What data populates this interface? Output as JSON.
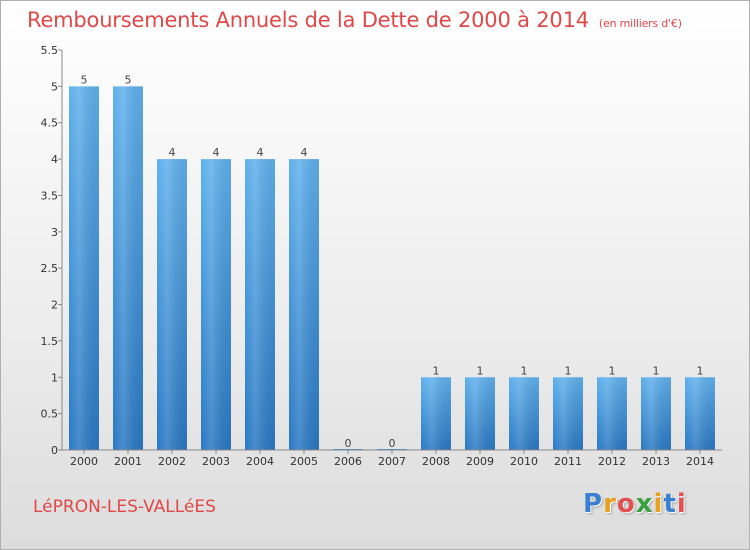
{
  "header": {
    "title": "Remboursements Annuels de la Dette de 2000 à 2014",
    "unit": "(en milliers d'€)"
  },
  "footer": {
    "commune": "LéPRON-LES-VALLéES",
    "logo_letters": [
      "P",
      "r",
      "o",
      "x",
      "i",
      "t",
      "i"
    ],
    "logo_colors": [
      "#3a7fd0",
      "#e8a020",
      "#e05050",
      "#3aa040",
      "#e8a020",
      "#3a7fd0",
      "#e05050"
    ]
  },
  "chart_data": {
    "type": "bar",
    "title": "Remboursements Annuels de la Dette de 2000 à 2014",
    "categories": [
      "2000",
      "2001",
      "2002",
      "2003",
      "2004",
      "2005",
      "2006",
      "2007",
      "2008",
      "2009",
      "2010",
      "2011",
      "2012",
      "2013",
      "2014"
    ],
    "values": [
      5,
      5,
      4,
      4,
      4,
      4,
      0,
      0,
      1,
      1,
      1,
      1,
      1,
      1,
      1
    ],
    "data_labels": [
      "5",
      "5",
      "4",
      "4",
      "4",
      "4",
      "0",
      "0",
      "1",
      "1",
      "1",
      "1",
      "1",
      "1",
      "1"
    ],
    "ylim": [
      0,
      5.5
    ],
    "yticks": [
      0,
      0.5,
      1,
      1.5,
      2,
      2.5,
      3,
      3.5,
      4,
      4.5,
      5,
      5.5
    ],
    "ytick_labels": [
      "0",
      "0.5",
      "1",
      "1.5",
      "2",
      "2.5",
      "3",
      "3.5",
      "4",
      "4.5",
      "5",
      "5.5"
    ],
    "bar_color": "#3d94dc",
    "grid": false
  }
}
